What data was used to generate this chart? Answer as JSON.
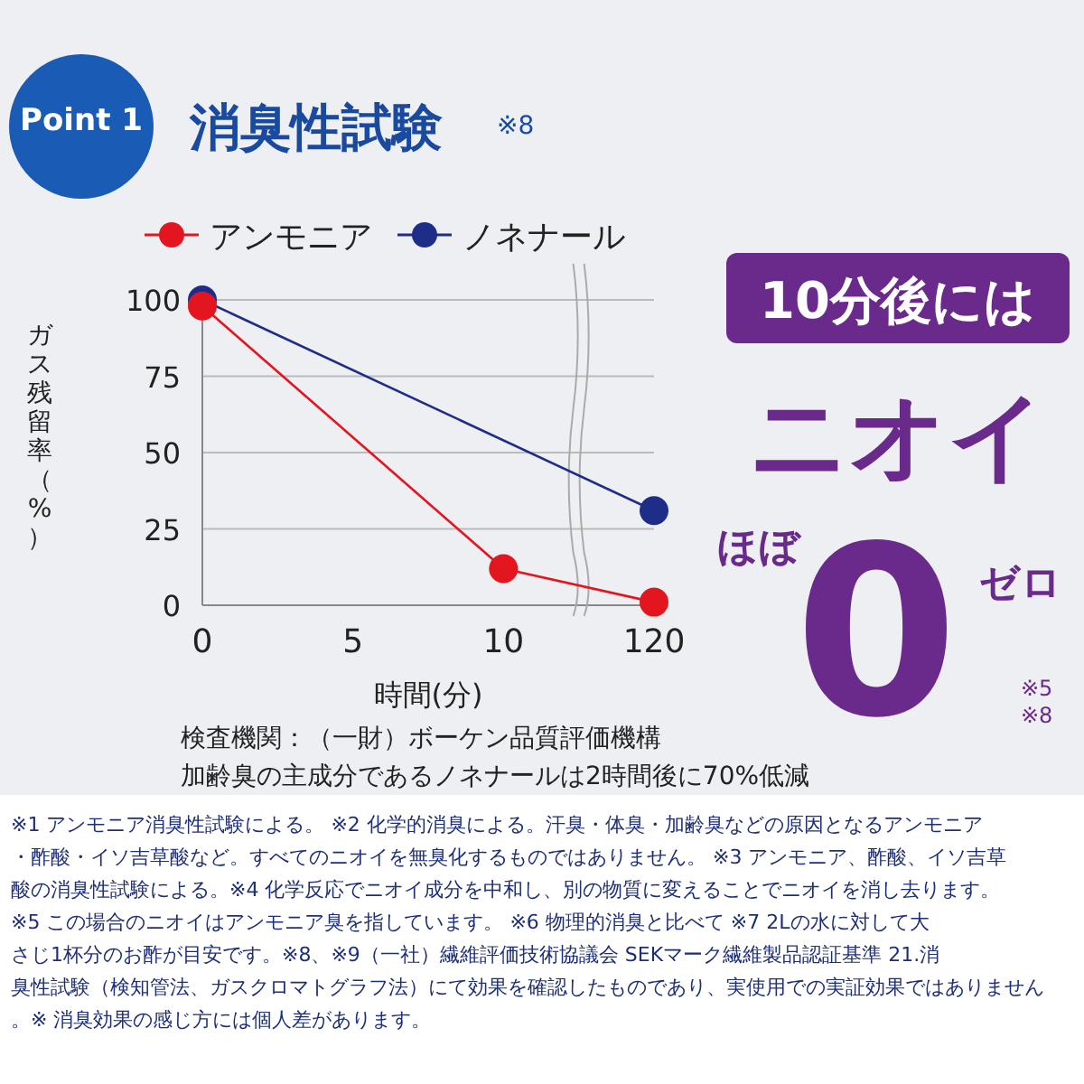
{
  "chart_data": {
    "type": "line",
    "title": "消臭性試験",
    "subtitle": "Point 1",
    "ylabel": "ガス残留率（%）",
    "xlabel": "時間(分)",
    "categories": [
      "0",
      "5",
      "10",
      "120"
    ],
    "series": [
      {
        "name": "アンモニア",
        "color": "#e3151f",
        "x": [
          "0",
          "10",
          "120"
        ],
        "values": [
          98,
          12,
          1
        ]
      },
      {
        "name": "ノネナール",
        "color": "#1d2d88",
        "x": [
          "0",
          "120"
        ],
        "values": [
          100,
          31
        ]
      }
    ],
    "ylim": [
      0,
      100
    ],
    "yticks": [
      0,
      25,
      50,
      75,
      100
    ],
    "grid": "y",
    "legend": "top",
    "marker": "circle",
    "line_style": "solid",
    "annotations": [
      "※8",
      "10分後には",
      "ニオイ",
      "ほぼ",
      "0",
      "ゼロ",
      "※5",
      "※8",
      "検査機関：（一財）ボーケン品質評価機構",
      "加齢臭の主成分であるノネナールは2時間後に70%低減",
      "※1 アンモニア消臭性試験による。 ※2 化学的消臭による。汗臭・体臭・加齢臭などの原因となるアンモニア・酢酸・イソ吉草酸など。すべてのニオイを無臭化するものではありません。 ※3 アンモニア、酢酸、イソ吉草酸の消臭性試験による。※4 化学反応でニオイ成分を中和し、別の物質に変えることでニオイを消し去ります。 ※5 この場合のニオイはアンモニア臭を指しています。 ※6 物理的消臭と比べて ※7 2Lの水に対して大さじ1杯分のお酢が目安です。※8、※9（一社）繊維評価技術協議会 SEKマーク繊維製品認証基準 21.消臭性試験（検知管法、ガスクロマトグラフ法）にて効果を確認したものであり、実使用での実証効果ではありません。※ 消臭効果の感じ方には個人差があります。"
    ]
  }
}
